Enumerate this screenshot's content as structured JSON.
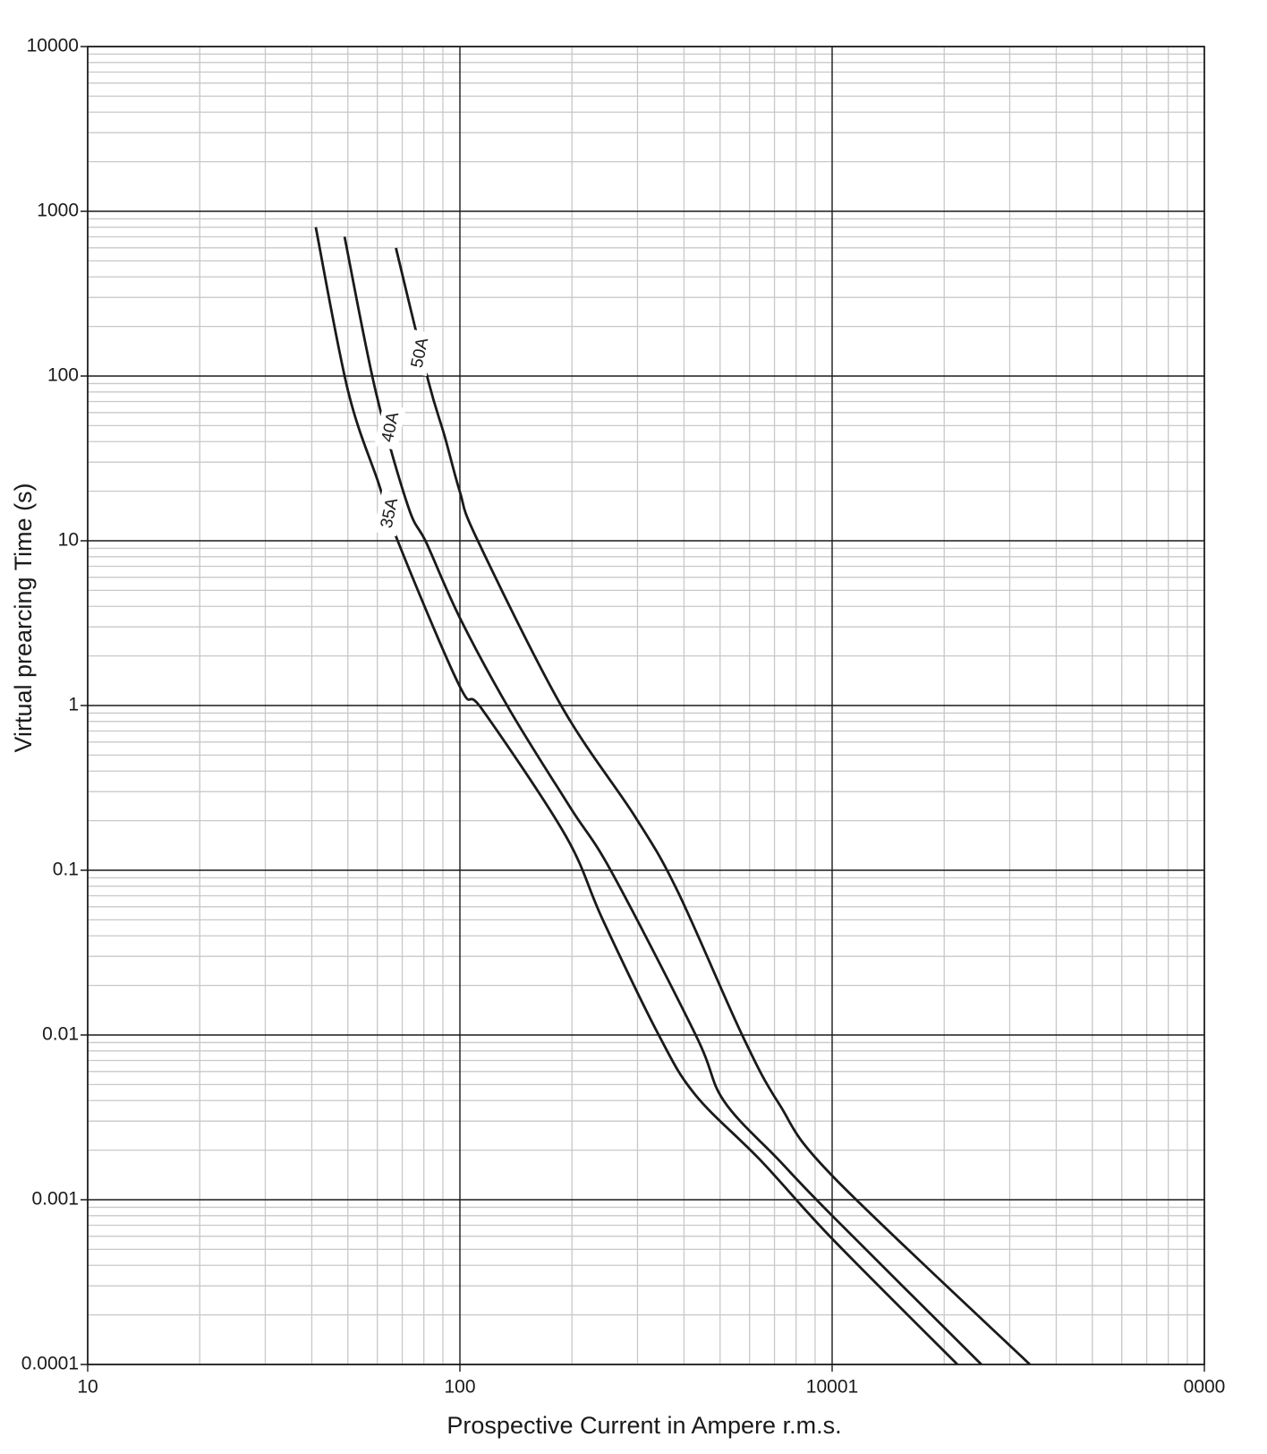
{
  "chart_data": {
    "type": "line",
    "xlabel": "Prospective Current in Ampere r.m.s.",
    "ylabel": "Virtual prearcing Time (s)",
    "xscale": "log",
    "yscale": "log",
    "xlim": [
      10,
      10000
    ],
    "ylim": [
      0.0001,
      10000
    ],
    "xticks": [
      10,
      100,
      {
        "value": 1000,
        "label": "10001"
      },
      {
        "value": 10000,
        "label": "0000"
      }
    ],
    "yticks": [
      0.0001,
      0.001,
      0.01,
      0.1,
      1,
      10,
      100,
      1000,
      10000
    ],
    "grid": true,
    "series": [
      {
        "name": "35A",
        "color": "#1a1a1a",
        "x": [
          41,
          50,
          60.4,
          68.4,
          100,
          115,
          192,
          242,
          342,
          430,
          643,
          1000,
          2170
        ],
        "values": [
          800,
          82,
          22.5,
          9.7,
          1.3,
          0.94,
          0.163,
          0.05,
          0.01,
          0.0043,
          0.00173,
          0.00058,
          0.0001
        ]
      },
      {
        "name": "40A",
        "color": "#1a1a1a",
        "x": [
          49,
          59.3,
          72.5,
          81.3,
          100,
          136,
          198,
          256,
          430,
          511,
          721,
          1000,
          2518
        ],
        "values": [
          700,
          82,
          16.3,
          9.7,
          3.4,
          0.94,
          0.24,
          0.097,
          0.01,
          0.004,
          0.00173,
          0.0008,
          0.0001
        ]
      },
      {
        "name": "50A",
        "color": "#1a1a1a",
        "x": [
          67.3,
          82.2,
          91,
          100,
          111,
          187,
          296,
          384,
          573,
          721,
          1000,
          3398
        ],
        "values": [
          599,
          93.7,
          43,
          19.8,
          10.3,
          1,
          0.21,
          0.075,
          0.01,
          0.0038,
          0.0014,
          0.0001
        ]
      }
    ]
  }
}
